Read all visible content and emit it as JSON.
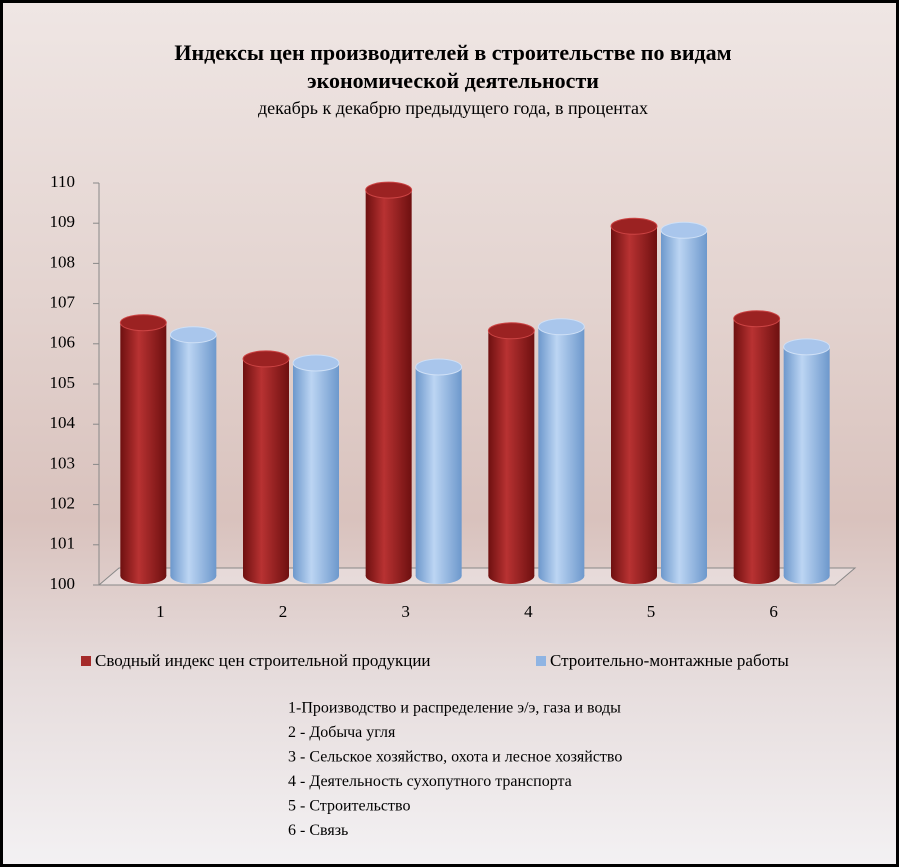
{
  "chart_data": {
    "type": "bar",
    "title": "Индексы цен производителей в строительстве по видам экономической деятельности",
    "subtitle": "декабрь к декабрю предыдущего года, в процентах",
    "categories": [
      "1",
      "2",
      "3",
      "4",
      "5",
      "6"
    ],
    "series": [
      {
        "name": "Сводный индекс цен строительной продукции",
        "color": "#a52a2a",
        "values": [
          106.3,
          105.4,
          109.6,
          106.1,
          108.7,
          106.4
        ]
      },
      {
        "name": "Строительно-монтажные работы",
        "color": "#8fb4e3",
        "values": [
          106.0,
          105.3,
          105.2,
          106.2,
          108.6,
          105.7
        ]
      }
    ],
    "ylim": [
      100,
      110
    ],
    "yticks": [
      100,
      101,
      102,
      103,
      104,
      105,
      106,
      107,
      108,
      109,
      110
    ],
    "legend": "bottom",
    "notes": [
      "1-Производство и распределение э/э, газа и воды",
      "2 - Добыча угля",
      "3 - Сельское хозяйство, охота и лесное хозяйство",
      "4 - Деятельность сухопутного транспорта",
      "5 - Строительство",
      "6 - Связь"
    ]
  }
}
